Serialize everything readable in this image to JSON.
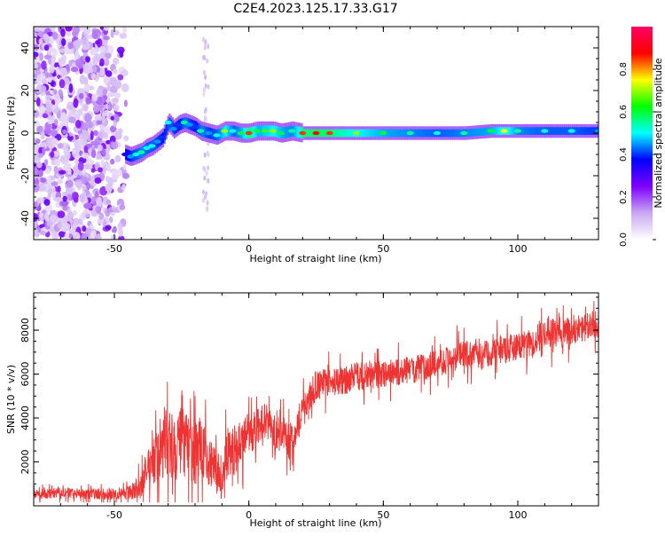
{
  "title": "C2E4.2023.125.17.33.G17",
  "chart_data": [
    {
      "type": "heatmap",
      "xlabel": "Height of straight line (km)",
      "ylabel": "Frequency (Hz)",
      "xlim": [
        -80,
        130
      ],
      "ylim": [
        -50,
        50
      ],
      "xticks": [
        -50,
        0,
        50,
        100
      ],
      "yticks": [
        -40,
        -20,
        0,
        20,
        40
      ],
      "colorbar": {
        "label": "Normalized spectral amplitude",
        "range": [
          0.0,
          1.0
        ],
        "ticks": [
          0.0,
          0.2,
          0.4,
          0.6,
          0.8
        ],
        "tick_labels": [
          "0.0",
          "0.2",
          "0.4",
          "0.6",
          "0.8"
        ],
        "colors": [
          "#ffffff",
          "#c9a8f2",
          "#7f00ff",
          "#0000ff",
          "#00ffff",
          "#00ff00",
          "#ffff00",
          "#ff0000",
          "#ff0066"
        ]
      },
      "ridge": [
        [
          -46,
          -10,
          0.35
        ],
        [
          -44,
          -11,
          0.45
        ],
        [
          -42,
          -10,
          0.5
        ],
        [
          -40,
          -9,
          0.55
        ],
        [
          -38,
          -7,
          0.5
        ],
        [
          -36,
          -6,
          0.5
        ],
        [
          -34,
          -4,
          0.45
        ],
        [
          -32,
          -2,
          0.4
        ],
        [
          -30,
          5,
          0.5
        ],
        [
          -28,
          2,
          0.45
        ],
        [
          -26,
          4,
          0.4
        ],
        [
          -24,
          5,
          0.55
        ],
        [
          -22,
          4,
          0.45
        ],
        [
          -20,
          3,
          0.4
        ],
        [
          -18,
          1,
          0.55
        ],
        [
          -15,
          0,
          0.45
        ],
        [
          -12,
          -1,
          0.5
        ],
        [
          -9,
          1,
          0.7
        ],
        [
          -6,
          1,
          0.5
        ],
        [
          -3,
          0,
          0.6
        ],
        [
          0,
          0,
          0.85
        ],
        [
          3,
          1,
          0.6
        ],
        [
          6,
          1,
          0.65
        ],
        [
          9,
          1,
          0.7
        ],
        [
          12,
          0,
          0.6
        ],
        [
          16,
          1,
          0.55
        ],
        [
          20,
          0,
          0.85
        ],
        [
          25,
          0,
          0.9
        ],
        [
          30,
          0,
          0.85
        ],
        [
          40,
          0,
          0.7
        ],
        [
          50,
          0,
          0.6
        ],
        [
          60,
          0,
          0.55
        ],
        [
          70,
          0,
          0.5
        ],
        [
          80,
          0,
          0.55
        ],
        [
          90,
          1,
          0.6
        ],
        [
          95,
          1,
          0.75
        ],
        [
          100,
          1,
          0.55
        ],
        [
          110,
          1,
          0.5
        ],
        [
          120,
          1,
          0.5
        ],
        [
          130,
          1,
          0.45
        ]
      ]
    },
    {
      "type": "line",
      "xlabel": "Height of straight line (km)",
      "ylabel": "SNR (10 * v/v)",
      "xlim": [
        -80,
        130
      ],
      "ylim": [
        0,
        9700
      ],
      "xticks": [
        -50,
        0,
        50,
        100
      ],
      "yticks": [
        2000,
        4000,
        6000,
        8000
      ],
      "color": "#ee3333",
      "x": [
        -80,
        -70,
        -60,
        -50,
        -45,
        -40,
        -38,
        -35,
        -32,
        -30,
        -28,
        -25,
        -22,
        -20,
        -18,
        -15,
        -12,
        -10,
        -8,
        -5,
        -2,
        0,
        3,
        5,
        8,
        10,
        13,
        15,
        18,
        20,
        23,
        25,
        30,
        35,
        40,
        45,
        50,
        55,
        60,
        65,
        70,
        75,
        80,
        85,
        90,
        95,
        100,
        105,
        110,
        115,
        120,
        125,
        130
      ],
      "y": [
        500,
        600,
        550,
        550,
        600,
        900,
        1600,
        2200,
        2800,
        3000,
        2600,
        2900,
        2500,
        2300,
        2800,
        2000,
        1500,
        1300,
        2100,
        2600,
        3000,
        3300,
        3500,
        3900,
        3700,
        3400,
        3100,
        2900,
        3600,
        4500,
        5000,
        5500,
        5600,
        5700,
        5900,
        5900,
        6000,
        6100,
        6200,
        6300,
        6500,
        6700,
        6900,
        6800,
        7000,
        7100,
        7300,
        7400,
        7900,
        7800,
        8000,
        8100,
        8300
      ],
      "spread": [
        300,
        300,
        300,
        350,
        400,
        700,
        1000,
        1500,
        2000,
        2200,
        2000,
        2000,
        2000,
        1900,
        1600,
        1400,
        1300,
        1300,
        1500,
        1400,
        1300,
        1200,
        1100,
        1000,
        1000,
        1000,
        1000,
        1000,
        1000,
        950,
        900,
        850,
        800,
        800,
        800,
        800,
        800,
        800,
        800,
        800,
        800,
        800,
        800,
        800,
        800,
        800,
        800,
        800,
        900,
        850,
        800,
        800,
        800
      ]
    }
  ]
}
